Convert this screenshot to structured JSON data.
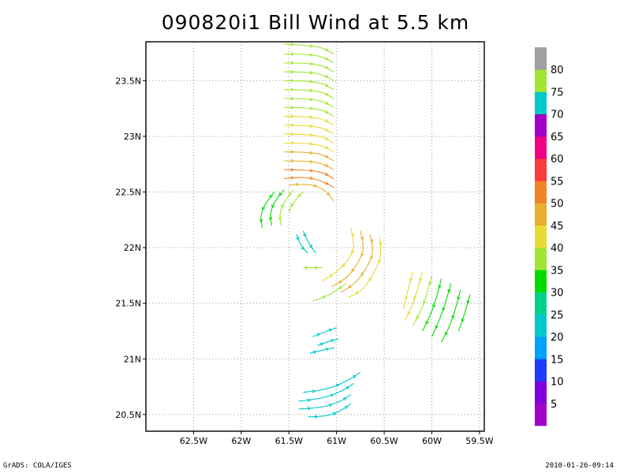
{
  "title": "090820i1 Bill Wind at 5.5 km",
  "footer": {
    "left": "GrADS: COLA/IGES",
    "right": "2010-01-26-09:14"
  },
  "chart_data": {
    "type": "streamline",
    "title": "090820i1 Bill Wind at 5.5 km",
    "xlim": [
      -63.0,
      -59.45
    ],
    "ylim": [
      20.35,
      23.85
    ],
    "grid": true,
    "xticks": [
      {
        "value": -62.5,
        "label": "62.5W"
      },
      {
        "value": -62.0,
        "label": "62W"
      },
      {
        "value": -61.5,
        "label": "61.5W"
      },
      {
        "value": -61.0,
        "label": "61W"
      },
      {
        "value": -60.5,
        "label": "60.5W"
      },
      {
        "value": -60.0,
        "label": "60W"
      },
      {
        "value": -59.5,
        "label": "59.5W"
      }
    ],
    "yticks": [
      {
        "value": 20.5,
        "label": "20.5N"
      },
      {
        "value": 21.0,
        "label": "21N"
      },
      {
        "value": 21.5,
        "label": "21.5N"
      },
      {
        "value": 22.0,
        "label": "22N"
      },
      {
        "value": 22.5,
        "label": "22.5N"
      },
      {
        "value": 23.0,
        "label": "23N"
      },
      {
        "value": 23.5,
        "label": "23.5N"
      }
    ],
    "colorbar": {
      "labels": [
        "5",
        "10",
        "15",
        "20",
        "25",
        "30",
        "35",
        "40",
        "45",
        "50",
        "55",
        "60",
        "65",
        "70",
        "75",
        "80"
      ],
      "colors": [
        "#a000c8",
        "#8200dc",
        "#1e3cff",
        "#00a0ff",
        "#00c8c8",
        "#00d28c",
        "#00dc00",
        "#a0e632",
        "#e6dc32",
        "#e6af2d",
        "#f08228",
        "#fa3c3c",
        "#f00082",
        "#a000c8",
        "#00c8c8",
        "#a0e632",
        "#a0a0a0"
      ]
    },
    "streamlines": [
      {
        "color": "#a0e632",
        "points": [
          [
            -61.55,
            23.83
          ],
          [
            -61.35,
            23.82
          ],
          [
            -61.15,
            23.8
          ],
          [
            -61.03,
            23.74
          ]
        ]
      },
      {
        "color": "#a0e632",
        "points": [
          [
            -61.55,
            23.74
          ],
          [
            -61.35,
            23.74
          ],
          [
            -61.15,
            23.72
          ],
          [
            -61.03,
            23.66
          ]
        ]
      },
      {
        "color": "#a0e632",
        "points": [
          [
            -61.55,
            23.66
          ],
          [
            -61.35,
            23.66
          ],
          [
            -61.15,
            23.64
          ],
          [
            -61.03,
            23.58
          ]
        ]
      },
      {
        "color": "#a0e632",
        "points": [
          [
            -61.55,
            23.58
          ],
          [
            -61.35,
            23.58
          ],
          [
            -61.15,
            23.56
          ],
          [
            -61.03,
            23.5
          ]
        ]
      },
      {
        "color": "#a0e632",
        "points": [
          [
            -61.55,
            23.5
          ],
          [
            -61.35,
            23.5
          ],
          [
            -61.15,
            23.48
          ],
          [
            -61.03,
            23.42
          ]
        ]
      },
      {
        "color": "#a0e632",
        "points": [
          [
            -61.55,
            23.42
          ],
          [
            -61.35,
            23.42
          ],
          [
            -61.15,
            23.4
          ],
          [
            -61.03,
            23.34
          ]
        ]
      },
      {
        "color": "#a0e632",
        "points": [
          [
            -61.55,
            23.34
          ],
          [
            -61.35,
            23.34
          ],
          [
            -61.15,
            23.32
          ],
          [
            -61.03,
            23.26
          ]
        ]
      },
      {
        "color": "#a0e632",
        "points": [
          [
            -61.55,
            23.26
          ],
          [
            -61.35,
            23.26
          ],
          [
            -61.15,
            23.24
          ],
          [
            -61.03,
            23.18
          ]
        ]
      },
      {
        "color": "#e6dc32",
        "points": [
          [
            -61.55,
            23.18
          ],
          [
            -61.35,
            23.18
          ],
          [
            -61.15,
            23.16
          ],
          [
            -61.03,
            23.1
          ]
        ]
      },
      {
        "color": "#e6dc32",
        "points": [
          [
            -61.55,
            23.1
          ],
          [
            -61.35,
            23.1
          ],
          [
            -61.15,
            23.08
          ],
          [
            -61.03,
            23.02
          ]
        ]
      },
      {
        "color": "#e6dc32",
        "points": [
          [
            -61.55,
            23.02
          ],
          [
            -61.35,
            23.02
          ],
          [
            -61.15,
            23.0
          ],
          [
            -61.03,
            22.94
          ]
        ]
      },
      {
        "color": "#e6dc32",
        "points": [
          [
            -61.55,
            22.94
          ],
          [
            -61.35,
            22.94
          ],
          [
            -61.15,
            22.92
          ],
          [
            -61.03,
            22.86
          ]
        ]
      },
      {
        "color": "#e6af2d",
        "points": [
          [
            -61.55,
            22.86
          ],
          [
            -61.35,
            22.86
          ],
          [
            -61.15,
            22.84
          ],
          [
            -61.03,
            22.78
          ]
        ]
      },
      {
        "color": "#e6af2d",
        "points": [
          [
            -61.55,
            22.78
          ],
          [
            -61.35,
            22.78
          ],
          [
            -61.15,
            22.76
          ],
          [
            -61.03,
            22.7
          ]
        ]
      },
      {
        "color": "#f08228",
        "points": [
          [
            -61.55,
            22.7
          ],
          [
            -61.35,
            22.7
          ],
          [
            -61.15,
            22.68
          ],
          [
            -61.03,
            22.62
          ]
        ]
      },
      {
        "color": "#f08228",
        "points": [
          [
            -61.55,
            22.62
          ],
          [
            -61.35,
            22.64
          ],
          [
            -61.15,
            22.6
          ],
          [
            -61.03,
            22.54
          ]
        ]
      },
      {
        "color": "#e6af2d",
        "points": [
          [
            -61.5,
            22.56
          ],
          [
            -61.3,
            22.58
          ],
          [
            -61.12,
            22.52
          ],
          [
            -61.03,
            22.42
          ]
        ]
      },
      {
        "color": "#00dc00",
        "points": [
          [
            -61.65,
            22.5
          ],
          [
            -61.75,
            22.4
          ],
          [
            -61.8,
            22.28
          ],
          [
            -61.78,
            22.18
          ]
        ]
      },
      {
        "color": "#00dc00",
        "points": [
          [
            -61.55,
            22.52
          ],
          [
            -61.65,
            22.42
          ],
          [
            -61.7,
            22.3
          ],
          [
            -61.68,
            22.2
          ]
        ]
      },
      {
        "color": "#a0e632",
        "points": [
          [
            -61.45,
            22.52
          ],
          [
            -61.55,
            22.42
          ],
          [
            -61.6,
            22.3
          ],
          [
            -61.58,
            22.2
          ]
        ]
      },
      {
        "color": "#a0e632",
        "points": [
          [
            -61.35,
            22.5
          ],
          [
            -61.45,
            22.42
          ],
          [
            -61.5,
            22.32
          ]
        ]
      },
      {
        "color": "#00c8c8",
        "points": [
          [
            -61.35,
            22.15
          ],
          [
            -61.3,
            22.05
          ],
          [
            -61.22,
            21.95
          ]
        ]
      },
      {
        "color": "#00c8c8",
        "points": [
          [
            -61.42,
            22.12
          ],
          [
            -61.38,
            22.02
          ],
          [
            -61.3,
            21.95
          ]
        ]
      },
      {
        "color": "#a0e632",
        "points": [
          [
            -61.35,
            21.82
          ],
          [
            -61.25,
            21.82
          ],
          [
            -61.15,
            21.82
          ]
        ]
      },
      {
        "color": "#e6dc32",
        "points": [
          [
            -60.85,
            22.18
          ],
          [
            -60.8,
            22.02
          ],
          [
            -60.88,
            21.88
          ],
          [
            -61.0,
            21.78
          ],
          [
            -61.15,
            21.7
          ]
        ]
      },
      {
        "color": "#e6af2d",
        "points": [
          [
            -60.75,
            22.15
          ],
          [
            -60.7,
            22.0
          ],
          [
            -60.78,
            21.85
          ],
          [
            -60.9,
            21.72
          ],
          [
            -61.05,
            21.65
          ]
        ]
      },
      {
        "color": "#e6af2d",
        "points": [
          [
            -60.65,
            22.12
          ],
          [
            -60.6,
            21.98
          ],
          [
            -60.68,
            21.82
          ],
          [
            -60.8,
            21.68
          ],
          [
            -60.95,
            21.6
          ]
        ]
      },
      {
        "color": "#e6dc32",
        "points": [
          [
            -60.55,
            22.1
          ],
          [
            -60.52,
            21.95
          ],
          [
            -60.6,
            21.78
          ],
          [
            -60.72,
            21.62
          ],
          [
            -60.88,
            21.55
          ]
        ]
      },
      {
        "color": "#a0e632",
        "points": [
          [
            -60.9,
            21.68
          ],
          [
            -61.05,
            21.58
          ],
          [
            -61.25,
            21.52
          ]
        ]
      },
      {
        "color": "#e6dc32",
        "points": [
          [
            -60.2,
            21.78
          ],
          [
            -60.25,
            21.62
          ],
          [
            -60.3,
            21.45
          ]
        ]
      },
      {
        "color": "#e6dc32",
        "points": [
          [
            -60.1,
            21.78
          ],
          [
            -60.15,
            21.62
          ],
          [
            -60.22,
            21.45
          ],
          [
            -60.28,
            21.35
          ]
        ]
      },
      {
        "color": "#a0e632",
        "points": [
          [
            -60.0,
            21.75
          ],
          [
            -60.05,
            21.58
          ],
          [
            -60.12,
            21.42
          ],
          [
            -60.2,
            21.3
          ]
        ]
      },
      {
        "color": "#00dc00",
        "points": [
          [
            -59.9,
            21.72
          ],
          [
            -59.95,
            21.55
          ],
          [
            -60.02,
            21.38
          ],
          [
            -60.1,
            21.25
          ]
        ]
      },
      {
        "color": "#00dc00",
        "points": [
          [
            -59.8,
            21.68
          ],
          [
            -59.85,
            21.52
          ],
          [
            -59.92,
            21.35
          ],
          [
            -60.0,
            21.2
          ]
        ]
      },
      {
        "color": "#00dc00",
        "points": [
          [
            -59.7,
            21.62
          ],
          [
            -59.75,
            21.45
          ],
          [
            -59.82,
            21.28
          ],
          [
            -59.9,
            21.15
          ]
        ]
      },
      {
        "color": "#00dc00",
        "points": [
          [
            -59.6,
            21.58
          ],
          [
            -59.65,
            21.42
          ],
          [
            -59.72,
            21.25
          ]
        ]
      },
      {
        "color": "#00c8c8",
        "points": [
          [
            -61.25,
            21.2
          ],
          [
            -61.1,
            21.25
          ],
          [
            -61.0,
            21.28
          ]
        ]
      },
      {
        "color": "#00c8c8",
        "points": [
          [
            -61.2,
            21.12
          ],
          [
            -61.08,
            21.16
          ],
          [
            -60.98,
            21.18
          ]
        ]
      },
      {
        "color": "#00c8c8",
        "points": [
          [
            -61.28,
            21.05
          ],
          [
            -61.15,
            21.08
          ],
          [
            -61.02,
            21.1
          ]
        ]
      },
      {
        "color": "#00c8c8",
        "points": [
          [
            -61.35,
            20.7
          ],
          [
            -61.1,
            20.72
          ],
          [
            -60.85,
            20.82
          ],
          [
            -60.75,
            20.88
          ]
        ]
      },
      {
        "color": "#00c8c8",
        "points": [
          [
            -61.4,
            20.62
          ],
          [
            -61.15,
            20.64
          ],
          [
            -60.92,
            20.72
          ],
          [
            -60.82,
            20.78
          ]
        ]
      },
      {
        "color": "#00c8c8",
        "points": [
          [
            -61.4,
            20.55
          ],
          [
            -61.15,
            20.56
          ],
          [
            -60.95,
            20.62
          ],
          [
            -60.85,
            20.68
          ]
        ]
      },
      {
        "color": "#00c8c8",
        "points": [
          [
            -61.3,
            20.48
          ],
          [
            -61.1,
            20.48
          ],
          [
            -60.92,
            20.55
          ],
          [
            -60.85,
            20.6
          ]
        ]
      }
    ]
  }
}
